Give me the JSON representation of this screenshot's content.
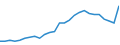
{
  "chart_data": {
    "type": "line",
    "categories": [
      null,
      null,
      null,
      null,
      null,
      null,
      null,
      null,
      null,
      null,
      null,
      null,
      null,
      null,
      null,
      null,
      null,
      null,
      null,
      null,
      null,
      null,
      null,
      null,
      null
    ],
    "values": [
      3,
      3,
      4,
      3,
      4,
      6,
      7,
      8,
      6,
      10,
      12,
      13,
      22,
      22,
      25,
      30,
      33,
      35,
      32,
      31,
      31,
      26,
      24,
      22,
      40
    ],
    "color": "#2f8ccc",
    "ylim": [
      0,
      45
    ],
    "grid": false,
    "tick_labels": false
  }
}
